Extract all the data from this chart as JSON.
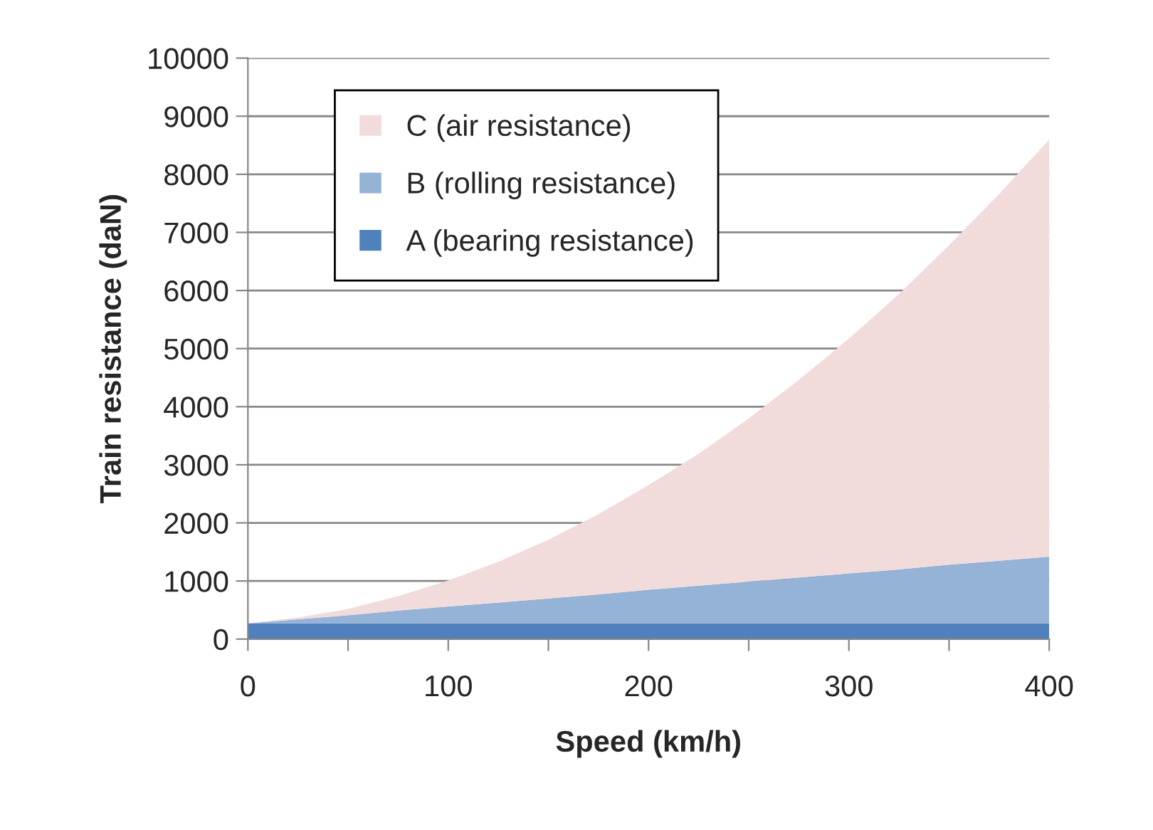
{
  "chart_data": {
    "type": "area",
    "stacked": true,
    "xlabel": "Speed (km/h)",
    "ylabel": "Train resistance (daN)",
    "x": [
      0,
      25,
      50,
      75,
      100,
      125,
      150,
      175,
      200,
      225,
      250,
      275,
      300,
      325,
      350,
      375,
      400
    ],
    "series": [
      {
        "name": "A (bearing resistance)",
        "color": "#4f81bd",
        "values": [
          270,
          270,
          270,
          270,
          270,
          270,
          270,
          270,
          270,
          270,
          270,
          270,
          270,
          270,
          270,
          270,
          270
        ]
      },
      {
        "name": "B (rolling resistance)",
        "color": "#95b3d7",
        "values": [
          0,
          70,
          140,
          220,
          290,
          360,
          430,
          500,
          580,
          650,
          720,
          790,
          860,
          930,
          1010,
          1080,
          1150
        ]
      },
      {
        "name": "C (air resistance)",
        "color": "#f2dcdb",
        "values": [
          0,
          30,
          110,
          250,
          450,
          700,
          1010,
          1380,
          1800,
          2270,
          2810,
          3400,
          4040,
          4740,
          5500,
          6310,
          7180
        ]
      }
    ],
    "xlim": [
      0,
      400
    ],
    "xticks": [
      0,
      {
        "value": 50,
        "label": null
      },
      100,
      {
        "value": 150,
        "label": null
      },
      200,
      {
        "value": 250,
        "label": null
      },
      300,
      {
        "value": 350,
        "label": null
      },
      400
    ],
    "ylim": [
      0,
      10000
    ],
    "yticks": [
      0,
      1000,
      2000,
      3000,
      4000,
      5000,
      6000,
      7000,
      8000,
      9000,
      10000
    ],
    "grid": "y",
    "legend": "top left"
  }
}
